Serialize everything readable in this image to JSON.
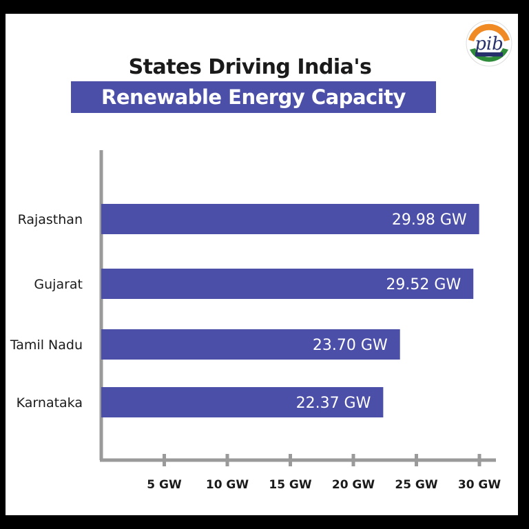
{
  "colors": {
    "bar": "#4b4fa8",
    "axis": "#9a9a9a",
    "title_band": "#4b4fa8",
    "text": "#1a1a1a",
    "logo_saffron": "#f08a24",
    "logo_green": "#2e8b3a",
    "logo_navy": "#27306b"
  },
  "logo": {
    "text": "pib",
    "icon": "pib-logo-icon"
  },
  "chart_data": {
    "type": "bar",
    "orientation": "horizontal",
    "title": "States Driving India's",
    "subtitle": "Renewable Energy Capacity",
    "categories": [
      "Rajasthan",
      "Gujarat",
      "Tamil Nadu",
      "Karnataka"
    ],
    "values": [
      29.98,
      29.52,
      23.7,
      22.37
    ],
    "value_labels": [
      "29.98 GW",
      "29.52 GW",
      "23.70 GW",
      "22.37 GW"
    ],
    "unit": "GW",
    "x_ticks": [
      5,
      10,
      15,
      20,
      25,
      30
    ],
    "x_tick_labels": [
      "5 GW",
      "10 GW",
      "15 GW",
      "20 GW",
      "25 GW",
      "30 GW"
    ],
    "xlim": [
      0,
      30
    ],
    "xlabel": "",
    "ylabel": "",
    "grid": false,
    "legend": "none"
  }
}
